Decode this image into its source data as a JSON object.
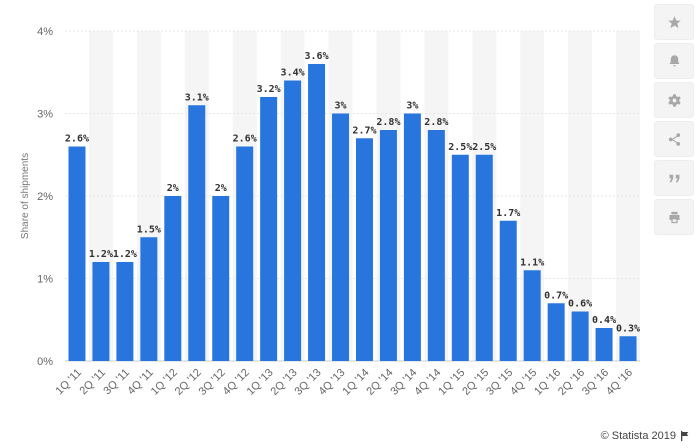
{
  "toolbar": {
    "items": [
      {
        "icon": "star-icon",
        "label": "Favorite"
      },
      {
        "icon": "bell-icon",
        "label": "Notifications"
      },
      {
        "icon": "gear-icon",
        "label": "Settings"
      },
      {
        "icon": "share-icon",
        "label": "Share"
      },
      {
        "icon": "quote-icon",
        "label": "Cite"
      },
      {
        "icon": "print-icon",
        "label": "Print"
      }
    ]
  },
  "credit": {
    "text": "© Statista 2019"
  },
  "colors": {
    "bar": "#2876dd",
    "grid": "#e6e6e6",
    "band": "#f5f5f5"
  },
  "chart_data": {
    "type": "bar",
    "ylabel": "Share of shipments",
    "xlabel": "",
    "ylim": [
      0,
      4
    ],
    "yticks": [
      0,
      1,
      2,
      3,
      4
    ],
    "ytick_labels": [
      "0%",
      "1%",
      "2%",
      "3%",
      "4%"
    ],
    "categories": [
      "1Q '11",
      "2Q '11",
      "3Q '11",
      "4Q '11",
      "1Q '12",
      "2Q '12",
      "3Q '12",
      "4Q '12",
      "1Q '13",
      "2Q '13",
      "3Q '13",
      "4Q '13",
      "1Q '14",
      "2Q '14",
      "3Q '14",
      "4Q '14",
      "1Q '15",
      "2Q '15",
      "3Q '15",
      "4Q '15",
      "1Q '16",
      "2Q '16",
      "3Q '16",
      "4Q '16"
    ],
    "values": [
      2.6,
      1.2,
      1.2,
      1.5,
      2,
      3.1,
      2,
      2.6,
      3.2,
      3.4,
      3.6,
      3,
      2.7,
      2.8,
      3,
      2.8,
      2.5,
      2.5,
      1.7,
      1.1,
      0.7,
      0.6,
      0.4,
      0.3
    ],
    "value_labels": [
      "2.6%",
      "1.2%",
      "1.2%",
      "1.5%",
      "2%",
      "3.1%",
      "2%",
      "2.6%",
      "3.2%",
      "3.4%",
      "3.6%",
      "3%",
      "2.7%",
      "2.8%",
      "3%",
      "2.8%",
      "2.5%",
      "2.5%",
      "1.7%",
      "1.1%",
      "0.7%",
      "0.6%",
      "0.4%",
      "0.3%"
    ],
    "grid": true
  }
}
